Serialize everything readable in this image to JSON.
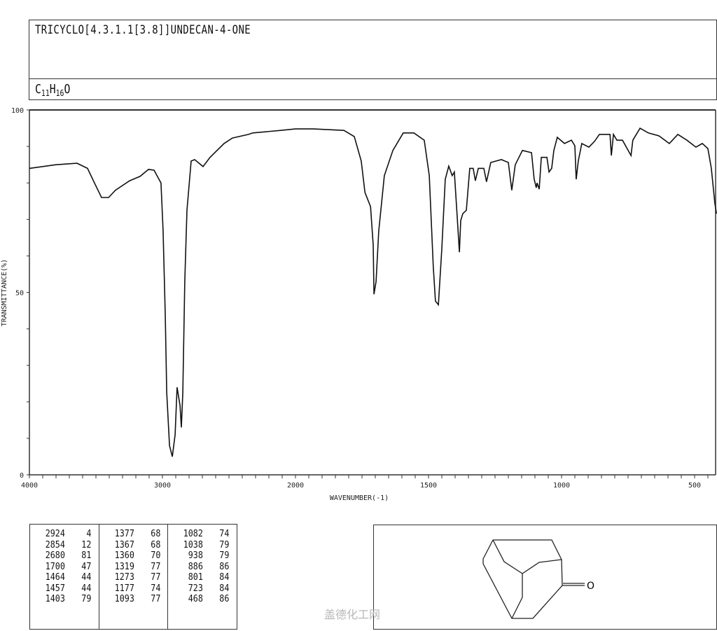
{
  "header": {
    "compound_name": "TRICYCLO[4.3.1.1[3.8]]UNDECAN-4-ONE",
    "formula": {
      "c": "C",
      "c_n": "11",
      "h": "H",
      "h_n": "16",
      "o": "O"
    }
  },
  "chart_data": {
    "type": "line",
    "xlabel": "WAVENUMBER(-1)",
    "ylabel": "TRANSMITTANCE(%)",
    "xlim": [
      4000,
      410
    ],
    "x_scale_break": 2000,
    "ylim": [
      0,
      100
    ],
    "x_tick_labels": [
      4000,
      3000,
      2000,
      1500,
      1000,
      500
    ],
    "y_tick_labels": [
      100,
      50,
      0
    ],
    "grid": false,
    "line_color": "#111111",
    "series": [
      {
        "points": [
          [
            4000,
            84
          ],
          [
            3800,
            85
          ],
          [
            3642,
            85.4
          ],
          [
            3563,
            84
          ],
          [
            3511,
            80
          ],
          [
            3458,
            76
          ],
          [
            3405,
            76
          ],
          [
            3353,
            78
          ],
          [
            3247,
            80.6
          ],
          [
            3168,
            81.8
          ],
          [
            3105,
            83.7
          ],
          [
            3063,
            83.5
          ],
          [
            3011,
            80
          ],
          [
            2995,
            67
          ],
          [
            2979,
            44
          ],
          [
            2968,
            22.6
          ],
          [
            2947,
            8
          ],
          [
            2926,
            5
          ],
          [
            2905,
            11
          ],
          [
            2890,
            24
          ],
          [
            2868,
            19
          ],
          [
            2858,
            13
          ],
          [
            2847,
            22.6
          ],
          [
            2832,
            53
          ],
          [
            2816,
            72.5
          ],
          [
            2784,
            86
          ],
          [
            2758,
            86.4
          ],
          [
            2695,
            84.5
          ],
          [
            2642,
            87
          ],
          [
            2537,
            90.8
          ],
          [
            2474,
            92.3
          ],
          [
            2353,
            93.3
          ],
          [
            2321,
            93.7
          ],
          [
            2111,
            94.4
          ],
          [
            2000,
            94.8
          ],
          [
            1932,
            94.8
          ],
          [
            1818,
            94.4
          ],
          [
            1779,
            92.7
          ],
          [
            1753,
            86
          ],
          [
            1739,
            77.4
          ],
          [
            1718,
            73.5
          ],
          [
            1708,
            63
          ],
          [
            1705,
            49.5
          ],
          [
            1697,
            53
          ],
          [
            1687,
            66.8
          ],
          [
            1666,
            82
          ],
          [
            1634,
            88.9
          ],
          [
            1595,
            93.7
          ],
          [
            1555,
            93.7
          ],
          [
            1516,
            91.7
          ],
          [
            1497,
            82
          ],
          [
            1482,
            57
          ],
          [
            1474,
            47.6
          ],
          [
            1463,
            46.6
          ],
          [
            1450,
            62
          ],
          [
            1437,
            81
          ],
          [
            1424,
            84.6
          ],
          [
            1411,
            82
          ],
          [
            1403,
            83
          ],
          [
            1392,
            70.6
          ],
          [
            1384,
            61
          ],
          [
            1379,
            69.7
          ],
          [
            1371,
            71.6
          ],
          [
            1358,
            72.5
          ],
          [
            1345,
            84
          ],
          [
            1332,
            84
          ],
          [
            1324,
            80.6
          ],
          [
            1313,
            84
          ],
          [
            1292,
            84
          ],
          [
            1282,
            80.3
          ],
          [
            1266,
            85.6
          ],
          [
            1226,
            86.4
          ],
          [
            1200,
            85.6
          ],
          [
            1187,
            78
          ],
          [
            1174,
            85
          ],
          [
            1147,
            88.9
          ],
          [
            1113,
            88.3
          ],
          [
            1103,
            81
          ],
          [
            1095,
            78.7
          ],
          [
            1092,
            80
          ],
          [
            1084,
            78.3
          ],
          [
            1076,
            87
          ],
          [
            1055,
            87
          ],
          [
            1047,
            83
          ],
          [
            1037,
            84
          ],
          [
            1029,
            88.9
          ],
          [
            1016,
            92.5
          ],
          [
            989,
            90.8
          ],
          [
            963,
            91.7
          ],
          [
            950,
            90.2
          ],
          [
            945,
            81
          ],
          [
            937,
            86
          ],
          [
            924,
            90.8
          ],
          [
            897,
            89.8
          ],
          [
            876,
            91.4
          ],
          [
            858,
            93.3
          ],
          [
            818,
            93.3
          ],
          [
            813,
            87.5
          ],
          [
            805,
            93.3
          ],
          [
            792,
            91.7
          ],
          [
            771,
            91.7
          ],
          [
            739,
            87.5
          ],
          [
            732,
            91.7
          ],
          [
            705,
            95
          ],
          [
            674,
            93.7
          ],
          [
            634,
            92.9
          ],
          [
            595,
            90.8
          ],
          [
            563,
            93.3
          ],
          [
            529,
            91.7
          ],
          [
            495,
            89.8
          ],
          [
            471,
            90.8
          ],
          [
            450,
            89.4
          ],
          [
            437,
            84
          ],
          [
            424,
            74.5
          ],
          [
            418,
            71.6
          ]
        ]
      }
    ]
  },
  "peak_table": {
    "columns": [
      [
        [
          "2924",
          "4"
        ],
        [
          "2854",
          "12"
        ],
        [
          "2680",
          "81"
        ],
        [
          "1700",
          "47"
        ],
        [
          "1464",
          "44"
        ],
        [
          "1457",
          "44"
        ],
        [
          "1403",
          "79"
        ]
      ],
      [
        [
          "1377",
          "68"
        ],
        [
          "1367",
          "68"
        ],
        [
          "1360",
          "70"
        ],
        [
          "1319",
          "77"
        ],
        [
          "1273",
          "77"
        ],
        [
          "1177",
          "74"
        ],
        [
          "1093",
          "77"
        ]
      ],
      [
        [
          "1082",
          "74"
        ],
        [
          "1038",
          "79"
        ],
        [
          "938",
          "79"
        ],
        [
          "886",
          "86"
        ],
        [
          "801",
          "84"
        ],
        [
          "723",
          "84"
        ],
        [
          "468",
          "86"
        ]
      ]
    ]
  },
  "structure": {
    "oxygen_label": "O"
  },
  "watermark": "盖德化工网"
}
